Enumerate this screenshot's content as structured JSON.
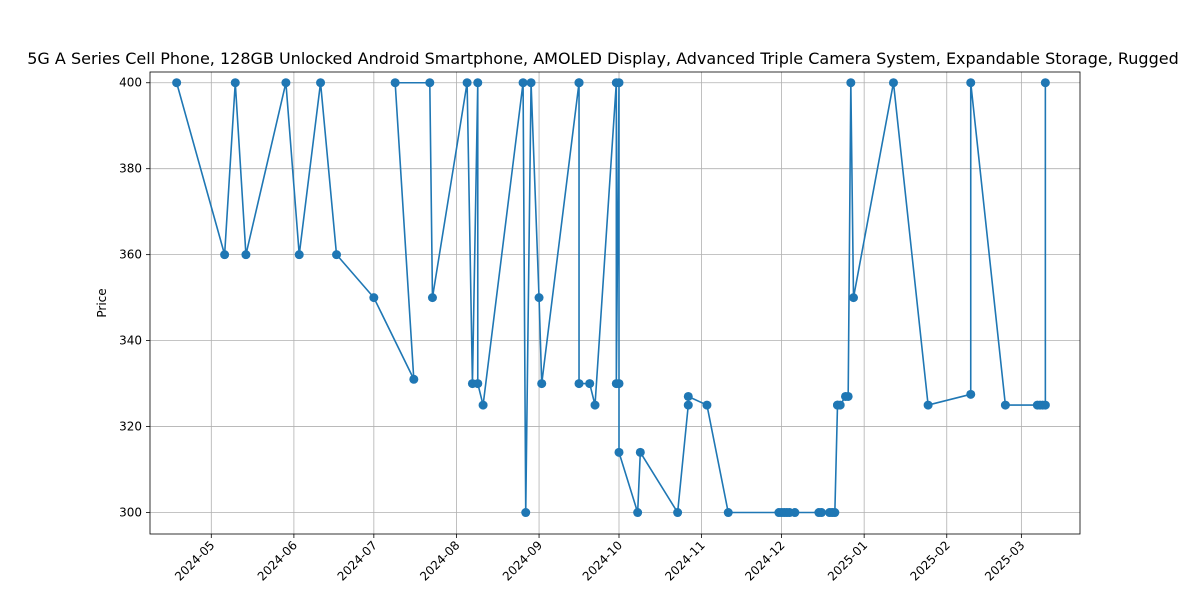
{
  "chart_data": {
    "type": "line",
    "title": "5G A Series Cell Phone, 128GB Unlocked Android Smartphone, AMOLED Display, Advanced Triple Camera System, Expandable Storage, Rugged",
    "xlabel": "",
    "ylabel": "Price",
    "xlim": [
      "2024-04-08",
      "2025-03-23"
    ],
    "ylim": [
      295,
      402.5
    ],
    "x_ticks": [
      "2024-05",
      "2024-06",
      "2024-07",
      "2024-08",
      "2024-09",
      "2024-10",
      "2024-11",
      "2024-12",
      "2025-01",
      "2025-02",
      "2025-03"
    ],
    "x_tick_dates": [
      "2024-05-01",
      "2024-06-01",
      "2024-07-01",
      "2024-08-01",
      "2024-09-01",
      "2024-10-01",
      "2024-11-01",
      "2024-12-01",
      "2025-01-01",
      "2025-02-01",
      "2025-03-01"
    ],
    "y_ticks": [
      300,
      320,
      340,
      360,
      380,
      400
    ],
    "grid": true,
    "color": "#1f77b4",
    "series": [
      {
        "x": [
          "2024-04-18",
          "2024-05-06",
          "2024-05-10",
          "2024-05-14",
          "2024-05-29",
          "2024-06-03",
          "2024-06-11",
          "2024-06-17",
          "2024-07-01",
          "2024-07-16",
          "2024-07-09",
          "2024-07-22",
          "2024-07-23",
          "2024-08-05",
          "2024-08-07",
          "2024-08-09",
          "2024-08-09",
          "2024-08-11",
          "2024-08-26",
          "2024-08-27",
          "2024-08-29",
          "2024-09-01",
          "2024-09-02",
          "2024-09-16",
          "2024-09-16",
          "2024-09-16",
          "2024-09-20",
          "2024-09-22",
          "2024-09-30",
          "2024-09-30",
          "2024-10-01",
          "2024-10-01",
          "2024-10-01",
          "2024-10-08",
          "2024-10-09",
          "2024-10-23",
          "2024-10-27",
          "2024-10-27",
          "2024-11-03",
          "2024-11-11",
          "2024-11-30",
          "2024-12-01",
          "2024-12-02",
          "2024-12-03",
          "2024-12-04",
          "2024-12-06",
          "2024-12-15",
          "2024-12-16",
          "2024-12-19",
          "2024-12-20",
          "2024-12-21",
          "2024-12-22",
          "2024-12-22",
          "2024-12-23",
          "2024-12-25",
          "2024-12-26",
          "2024-12-27",
          "2024-12-28",
          "2025-01-12",
          "2025-01-25",
          "2025-02-10",
          "2025-02-10",
          "2025-02-23",
          "2025-03-07",
          "2025-03-08",
          "2025-03-09",
          "2025-03-10",
          "2025-03-10"
        ],
        "values": [
          400,
          360,
          400,
          360,
          400,
          360,
          400,
          360,
          350,
          331,
          400,
          400,
          350,
          400,
          330,
          400,
          330,
          325,
          400,
          300,
          400,
          350,
          330,
          400,
          400,
          330,
          330,
          325,
          400,
          330,
          400,
          330,
          314,
          300,
          314,
          300,
          325,
          327,
          325,
          300,
          300,
          300,
          300,
          300,
          300,
          300,
          300,
          300,
          300,
          300,
          300,
          325,
          325,
          325,
          327,
          327,
          400,
          350,
          400,
          325,
          327.5,
          400,
          325,
          325,
          325,
          325,
          325,
          400
        ]
      }
    ]
  }
}
